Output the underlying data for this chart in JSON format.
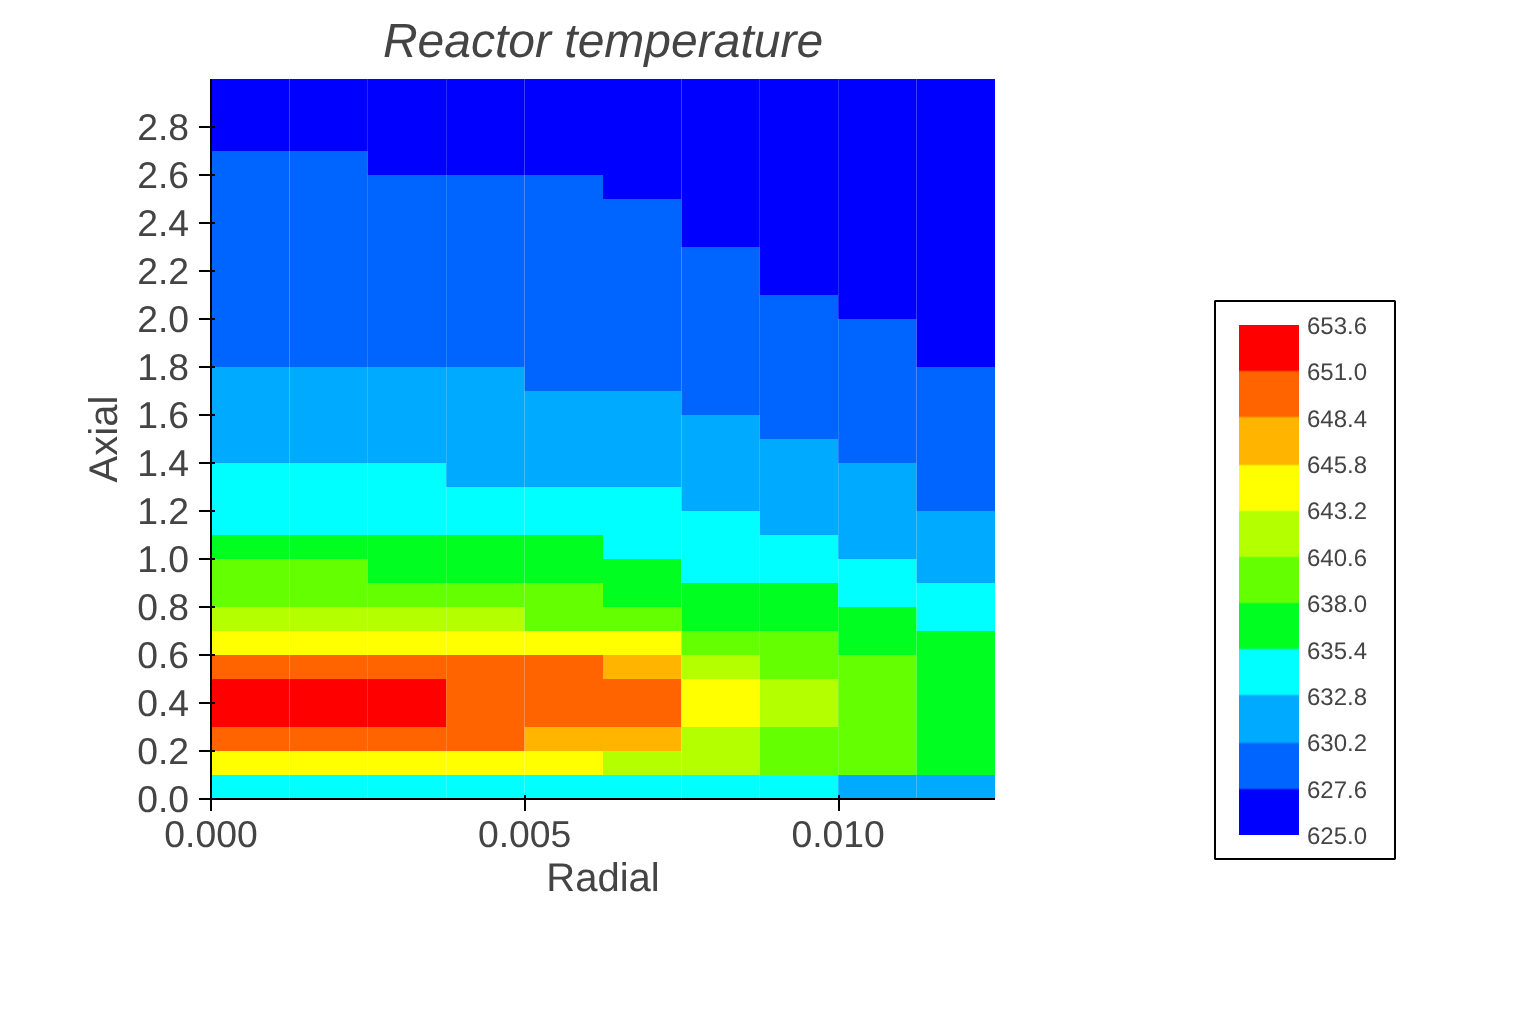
{
  "chart_data": {
    "type": "heatmap",
    "title": "Reactor temperature",
    "xlabel": "Radial",
    "ylabel": "Axial",
    "x": [
      0.000625,
      0.001875,
      0.003125,
      0.004375,
      0.005625,
      0.006875,
      0.008125,
      0.009375,
      0.010625,
      0.011875
    ],
    "y": [
      2.95,
      2.85,
      2.75,
      2.65,
      2.55,
      2.45,
      2.35,
      2.25,
      2.15,
      2.05,
      1.95,
      1.85,
      1.75,
      1.65,
      1.55,
      1.45,
      1.35,
      1.25,
      1.15,
      1.05,
      0.95,
      0.85,
      0.75,
      0.65,
      0.55,
      0.45,
      0.35,
      0.25,
      0.15,
      0.05
    ],
    "cells": [
      [
        626.3,
        626.3,
        626.3,
        626.3,
        626.3,
        626.3,
        626.3,
        626.3,
        626.3,
        626.3
      ],
      [
        626.3,
        626.3,
        626.3,
        626.3,
        626.3,
        626.3,
        626.3,
        626.3,
        626.3,
        626.3
      ],
      [
        626.3,
        626.3,
        626.3,
        626.3,
        626.3,
        626.3,
        626.3,
        626.3,
        626.3,
        626.3
      ],
      [
        628.9,
        628.9,
        626.3,
        626.3,
        626.3,
        626.3,
        626.3,
        626.3,
        626.3,
        626.3
      ],
      [
        628.9,
        628.9,
        628.9,
        628.9,
        628.9,
        626.3,
        626.3,
        626.3,
        626.3,
        626.3
      ],
      [
        628.9,
        628.9,
        628.9,
        628.9,
        628.9,
        628.9,
        626.3,
        626.3,
        626.3,
        626.3
      ],
      [
        628.9,
        628.9,
        628.9,
        628.9,
        628.9,
        628.9,
        626.3,
        626.3,
        626.3,
        626.3
      ],
      [
        628.9,
        628.9,
        628.9,
        628.9,
        628.9,
        628.9,
        628.9,
        626.3,
        626.3,
        626.3
      ],
      [
        628.9,
        628.9,
        628.9,
        628.9,
        628.9,
        628.9,
        628.9,
        626.3,
        626.3,
        626.3
      ],
      [
        628.9,
        628.9,
        628.9,
        628.9,
        628.9,
        628.9,
        628.9,
        628.9,
        626.3,
        626.3
      ],
      [
        628.9,
        628.9,
        628.9,
        628.9,
        628.9,
        628.9,
        628.9,
        628.9,
        628.9,
        626.3
      ],
      [
        628.9,
        628.9,
        628.9,
        628.9,
        628.9,
        628.9,
        628.9,
        628.9,
        628.9,
        626.3
      ],
      [
        631.5,
        631.5,
        631.5,
        631.5,
        628.9,
        628.9,
        628.9,
        628.9,
        628.9,
        628.9
      ],
      [
        631.5,
        631.5,
        631.5,
        631.5,
        631.5,
        631.5,
        628.9,
        628.9,
        628.9,
        628.9
      ],
      [
        631.5,
        631.5,
        631.5,
        631.5,
        631.5,
        631.5,
        631.5,
        628.9,
        628.9,
        628.9
      ],
      [
        631.5,
        631.5,
        631.5,
        631.5,
        631.5,
        631.5,
        631.5,
        631.5,
        628.9,
        628.9
      ],
      [
        634.1,
        634.1,
        634.1,
        631.5,
        631.5,
        631.5,
        631.5,
        631.5,
        631.5,
        628.9
      ],
      [
        634.1,
        634.1,
        634.1,
        634.1,
        634.1,
        634.1,
        631.5,
        631.5,
        631.5,
        628.9
      ],
      [
        634.1,
        634.1,
        634.1,
        634.1,
        634.1,
        634.1,
        634.1,
        631.5,
        631.5,
        631.5
      ],
      [
        636.7,
        636.7,
        636.7,
        636.7,
        636.7,
        634.1,
        634.1,
        634.1,
        631.5,
        631.5
      ],
      [
        639.3,
        639.3,
        636.7,
        636.7,
        636.7,
        636.7,
        634.1,
        634.1,
        634.1,
        631.5
      ],
      [
        639.3,
        639.3,
        639.3,
        639.3,
        639.3,
        636.7,
        636.7,
        636.7,
        634.1,
        634.1
      ],
      [
        641.9,
        641.9,
        641.9,
        641.9,
        639.3,
        639.3,
        636.7,
        636.7,
        636.7,
        634.1
      ],
      [
        644.5,
        644.5,
        644.5,
        644.5,
        644.5,
        644.5,
        639.3,
        639.3,
        636.7,
        636.7
      ],
      [
        649.7,
        649.7,
        649.7,
        649.7,
        649.7,
        647.1,
        641.9,
        639.3,
        639.3,
        636.7
      ],
      [
        652.3,
        652.3,
        652.3,
        649.7,
        649.7,
        649.7,
        644.5,
        641.9,
        639.3,
        636.7
      ],
      [
        652.3,
        652.3,
        652.3,
        649.7,
        649.7,
        649.7,
        644.5,
        641.9,
        639.3,
        636.7
      ],
      [
        649.7,
        649.7,
        649.7,
        649.7,
        647.1,
        647.1,
        641.9,
        639.3,
        639.3,
        636.7
      ],
      [
        644.5,
        644.5,
        644.5,
        644.5,
        644.5,
        641.9,
        641.9,
        639.3,
        639.3,
        636.7
      ],
      [
        634.1,
        634.1,
        634.1,
        634.1,
        634.1,
        634.1,
        634.1,
        634.1,
        631.5,
        631.5
      ]
    ],
    "colors": [
      "#0000ff",
      "#0064ff",
      "#00aaff",
      "#00ffff",
      "#00ff20",
      "#64ff00",
      "#b4ff00",
      "#ffff00",
      "#ffb400",
      "#ff6400",
      "#ff0000"
    ],
    "clim": [
      625.0,
      653.6
    ],
    "cticks": [
      {
        "value": 625.0,
        "label": "625.0"
      },
      {
        "value": 627.6,
        "label": "627.6"
      },
      {
        "value": 630.2,
        "label": "630.2"
      },
      {
        "value": 632.8,
        "label": "632.8"
      },
      {
        "value": 635.4,
        "label": "635.4"
      },
      {
        "value": 638.0,
        "label": "638.0"
      },
      {
        "value": 640.6,
        "label": "640.6"
      },
      {
        "value": 643.2,
        "label": "643.2"
      },
      {
        "value": 645.8,
        "label": "645.8"
      },
      {
        "value": 648.4,
        "label": "648.4"
      },
      {
        "value": 651.0,
        "label": "651.0"
      },
      {
        "value": 653.6,
        "label": "653.6"
      }
    ],
    "xlim": [
      0,
      0.0125
    ],
    "xticks": [
      {
        "value": 0,
        "label": "0.000"
      },
      {
        "value": 0.005,
        "label": "0.005"
      },
      {
        "value": 0.01,
        "label": "0.010"
      }
    ],
    "ylim": [
      0,
      3.0
    ],
    "yticks": [
      {
        "value": 0,
        "label": "0.0"
      },
      {
        "value": 0.2,
        "label": "0.2"
      },
      {
        "value": 0.4,
        "label": "0.4"
      },
      {
        "value": 0.6,
        "label": "0.6"
      },
      {
        "value": 0.8,
        "label": "0.8"
      },
      {
        "value": 1.0,
        "label": "1.0"
      },
      {
        "value": 1.2,
        "label": "1.2"
      },
      {
        "value": 1.4,
        "label": "1.4"
      },
      {
        "value": 1.6,
        "label": "1.6"
      },
      {
        "value": 1.8,
        "label": "1.8"
      },
      {
        "value": 2.0,
        "label": "2.0"
      },
      {
        "value": 2.2,
        "label": "2.2"
      },
      {
        "value": 2.4,
        "label": "2.4"
      },
      {
        "value": 2.6,
        "label": "2.6"
      },
      {
        "value": 2.8,
        "label": "2.8"
      }
    ]
  }
}
